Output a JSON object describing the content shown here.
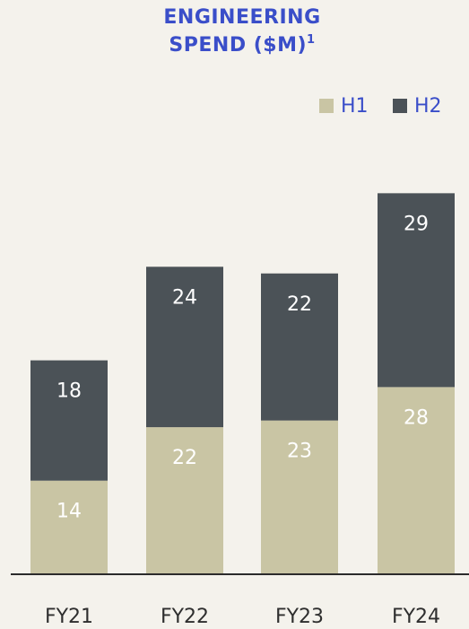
{
  "chart_data": {
    "type": "stacked_bar",
    "title": "ENGINEERING SPEND ($M)",
    "title_footnote": "1",
    "categories": [
      "FY21",
      "FY22",
      "FY23",
      "FY24"
    ],
    "series": [
      {
        "name": "H1",
        "color": "#c9c5a4",
        "values": [
          14,
          22,
          23,
          28
        ]
      },
      {
        "name": "H2",
        "color": "#4b5257",
        "values": [
          18,
          24,
          22,
          29
        ]
      }
    ],
    "ylim": [
      0,
      60
    ],
    "legend": "top-right"
  }
}
